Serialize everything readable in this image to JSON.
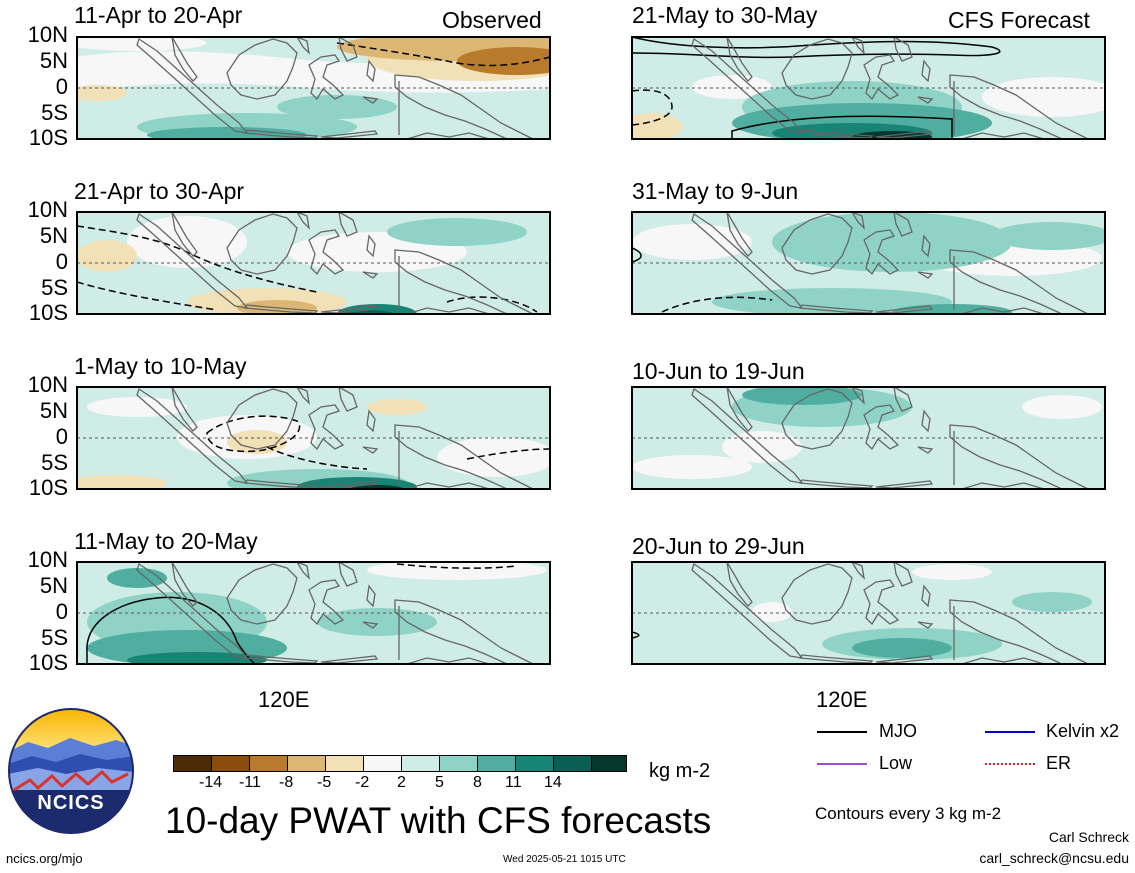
{
  "panels": [
    {
      "title": "11-Apr to 20-Apr",
      "corner_label": "Observed"
    },
    {
      "title": "21-Apr to 30-Apr"
    },
    {
      "title": "1-May to 10-May"
    },
    {
      "title": "11-May to 20-May"
    },
    {
      "title": "21-May to 30-May",
      "corner_label": "CFS Forecast"
    },
    {
      "title": "31-May to 9-Jun"
    },
    {
      "title": "10-Jun to 19-Jun"
    },
    {
      "title": "20-Jun to 29-Jun"
    }
  ],
  "lat_labels": [
    "10N",
    "5N",
    "0",
    "5S",
    "10S"
  ],
  "lon_label": "120E",
  "colorbar": {
    "colors": [
      "#4e2b07",
      "#8a4d0c",
      "#b97a2b",
      "#dcb774",
      "#f2e1b6",
      "#f7f7f7",
      "#cfece6",
      "#8fd3c6",
      "#4fae9f",
      "#178476",
      "#0a5f54",
      "#04382f"
    ],
    "ticks": [
      "-14",
      "-11",
      "-8",
      "-5",
      "-2",
      "2",
      "5",
      "8",
      "11",
      "14"
    ],
    "units": "kg m-2"
  },
  "legend": {
    "items": [
      {
        "label": "MJO",
        "color": "#000000",
        "style": "solid"
      },
      {
        "label": "Kelvin x2",
        "color": "#0000cc",
        "style": "solid"
      },
      {
        "label": "Low",
        "color": "#9b4fd6",
        "style": "solid"
      },
      {
        "label": "ER",
        "color": "#dd2222",
        "style": "dotted"
      }
    ],
    "note": "Contours every 3 kg m-2"
  },
  "main_title": "10-day PWAT with CFS forecasts",
  "logo_text": "NCICS",
  "footer": {
    "url": "ncics.org/mjo",
    "timestamp": "Wed 2025-05-21 1015 UTC",
    "author": "Carl Schreck",
    "email": "carl_schreck@ncsu.edu"
  }
}
